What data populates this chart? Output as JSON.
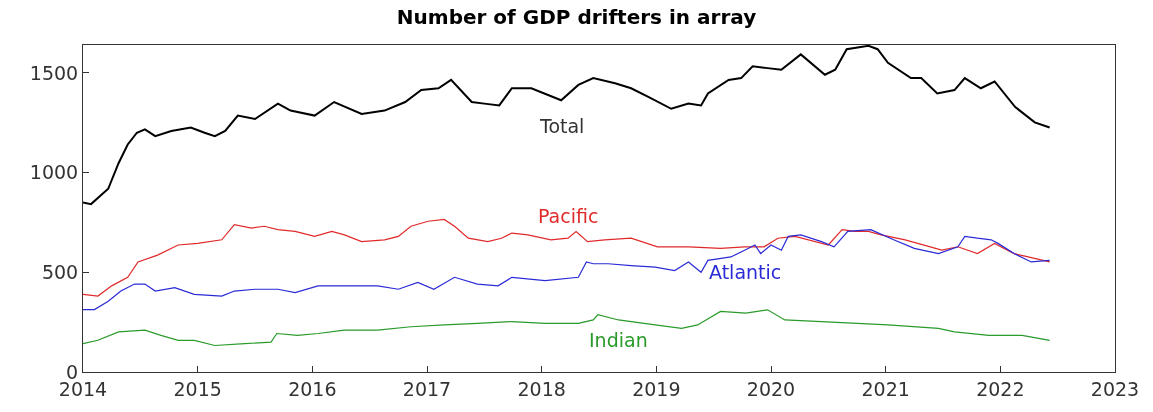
{
  "chart_data": {
    "type": "line",
    "title": "Number of GDP drifters in array",
    "xlim": [
      2014,
      2023
    ],
    "xticks": [
      2014,
      2015,
      2016,
      2017,
      2018,
      2019,
      2020,
      2021,
      2022,
      2023
    ],
    "ylim": [
      0,
      1640
    ],
    "yticks": [
      0,
      500,
      1000,
      1500
    ],
    "legend": false,
    "marker": "none",
    "line_style": "solid",
    "series": [
      {
        "name": "Total",
        "color": "#000000",
        "x": [
          2014.0,
          2014.07,
          2014.22,
          2014.31,
          2014.39,
          2014.47,
          2014.54,
          2014.63,
          2014.77,
          2014.94,
          2015.06,
          2015.15,
          2015.24,
          2015.35,
          2015.5,
          2015.7,
          2015.81,
          2016.02,
          2016.19,
          2016.43,
          2016.63,
          2016.81,
          2016.95,
          2017.1,
          2017.21,
          2017.39,
          2017.5,
          2017.63,
          2017.74,
          2017.91,
          2018.17,
          2018.32,
          2018.45,
          2018.64,
          2018.78,
          2018.93,
          2019.13,
          2019.28,
          2019.39,
          2019.45,
          2019.63,
          2019.74,
          2019.84,
          2019.97,
          2020.09,
          2020.26,
          2020.47,
          2020.56,
          2020.66,
          2020.85,
          2020.93,
          2021.02,
          2021.22,
          2021.31,
          2021.45,
          2021.6,
          2021.69,
          2021.83,
          2021.95,
          2022.13,
          2022.3,
          2022.43
        ],
        "values": [
          850,
          842,
          919,
          1047,
          1141,
          1200,
          1217,
          1183,
          1209,
          1226,
          1200,
          1183,
          1209,
          1286,
          1269,
          1346,
          1311,
          1286,
          1354,
          1294,
          1311,
          1354,
          1414,
          1423,
          1465,
          1354,
          1346,
          1337,
          1423,
          1423,
          1363,
          1440,
          1474,
          1448,
          1423,
          1380,
          1320,
          1346,
          1337,
          1397,
          1465,
          1474,
          1533,
          1524,
          1516,
          1593,
          1491,
          1516,
          1619,
          1636,
          1619,
          1551,
          1474,
          1474,
          1397,
          1414,
          1474,
          1423,
          1457,
          1329,
          1252,
          1226
        ]
      },
      {
        "name": "Pacific",
        "color": "#e02a2a",
        "x": [
          2014.0,
          2014.13,
          2014.25,
          2014.39,
          2014.48,
          2014.65,
          2014.83,
          2015.0,
          2015.21,
          2015.32,
          2015.47,
          2015.58,
          2015.7,
          2015.85,
          2016.02,
          2016.17,
          2016.28,
          2016.43,
          2016.63,
          2016.75,
          2016.86,
          2017.01,
          2017.15,
          2017.24,
          2017.36,
          2017.53,
          2017.65,
          2017.74,
          2017.88,
          2018.08,
          2018.23,
          2018.3,
          2018.4,
          2018.55,
          2018.78,
          2019.01,
          2019.28,
          2019.56,
          2019.77,
          2019.94,
          2020.06,
          2020.21,
          2020.5,
          2020.62,
          2020.73,
          2020.85,
          2020.96,
          2021.17,
          2021.49,
          2021.63,
          2021.8,
          2021.95,
          2022.12,
          2022.43
        ],
        "values": [
          389,
          381,
          432,
          475,
          552,
          586,
          637,
          645,
          663,
          739,
          722,
          731,
          714,
          705,
          680,
          705,
          688,
          654,
          663,
          680,
          731,
          756,
          765,
          731,
          671,
          654,
          671,
          697,
          688,
          663,
          671,
          705,
          654,
          663,
          671,
          628,
          628,
          620,
          628,
          628,
          671,
          680,
          637,
          714,
          705,
          705,
          688,
          663,
          611,
          628,
          594,
          645,
          594,
          552
        ]
      },
      {
        "name": "Atlantic",
        "color": "#2a2ad6",
        "x": [
          2014.0,
          2014.1,
          2014.22,
          2014.33,
          2014.45,
          2014.54,
          2014.63,
          2014.8,
          2014.97,
          2015.21,
          2015.32,
          2015.5,
          2015.7,
          2015.85,
          2016.05,
          2016.28,
          2016.57,
          2016.75,
          2016.92,
          2017.06,
          2017.24,
          2017.44,
          2017.62,
          2017.74,
          2018.03,
          2018.32,
          2018.39,
          2018.45,
          2018.58,
          2018.78,
          2018.99,
          2019.16,
          2019.28,
          2019.39,
          2019.45,
          2019.65,
          2019.77,
          2019.86,
          2019.91,
          2020.0,
          2020.09,
          2020.15,
          2020.26,
          2020.44,
          2020.55,
          2020.67,
          2020.87,
          2021.07,
          2021.25,
          2021.46,
          2021.63,
          2021.69,
          2021.8,
          2021.92,
          2021.98,
          2022.12,
          2022.27,
          2022.43
        ],
        "values": [
          313,
          313,
          355,
          406,
          441,
          441,
          406,
          423,
          389,
          381,
          406,
          415,
          415,
          398,
          432,
          432,
          432,
          415,
          449,
          415,
          475,
          441,
          432,
          475,
          458,
          475,
          552,
          543,
          543,
          534,
          526,
          509,
          552,
          500,
          560,
          577,
          611,
          637,
          594,
          637,
          611,
          680,
          688,
          654,
          628,
          705,
          714,
          663,
          620,
          594,
          628,
          680,
          671,
          663,
          645,
          594,
          552,
          560
        ]
      },
      {
        "name": "Indian",
        "color": "#2a9a2a",
        "x": [
          2014.0,
          2014.13,
          2014.31,
          2014.54,
          2014.68,
          2014.83,
          2014.97,
          2015.15,
          2015.41,
          2015.64,
          2015.69,
          2015.87,
          2016.05,
          2016.28,
          2016.57,
          2016.86,
          2017.15,
          2017.44,
          2017.74,
          2018.03,
          2018.32,
          2018.45,
          2018.49,
          2018.67,
          2018.99,
          2019.22,
          2019.36,
          2019.56,
          2019.78,
          2019.97,
          2020.12,
          2020.44,
          2021.02,
          2021.46,
          2021.6,
          2021.9,
          2022.19,
          2022.43
        ],
        "values": [
          142,
          159,
          201,
          210,
          184,
          159,
          159,
          133,
          142,
          150,
          193,
          184,
          193,
          210,
          210,
          227,
          236,
          244,
          253,
          244,
          244,
          261,
          287,
          261,
          236,
          219,
          236,
          304,
          295,
          312,
          261,
          253,
          236,
          219,
          201,
          184,
          184,
          159
        ]
      }
    ]
  }
}
